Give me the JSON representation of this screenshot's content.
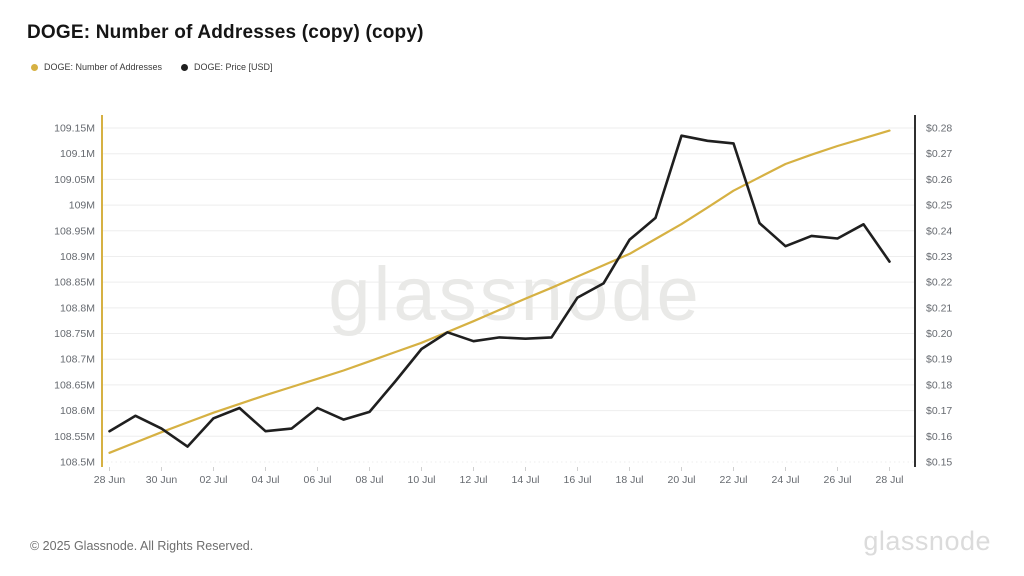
{
  "header": {
    "title": "DOGE: Number of Addresses (copy) (copy)"
  },
  "legend": {
    "items": [
      {
        "label": "DOGE: Number of Addresses",
        "color": "#d6b143"
      },
      {
        "label": "DOGE: Price [USD]",
        "color": "#1f1f1f"
      }
    ]
  },
  "watermark": "glassnode",
  "footer": {
    "copyright": "© 2025 Glassnode. All Rights Reserved.",
    "logo_text": "glassnode"
  },
  "chart_data": {
    "type": "line",
    "title": "DOGE: Number of Addresses (copy) (copy)",
    "grid": true,
    "legend_position": "top-left",
    "x": [
      "28 Jun",
      "29 Jun",
      "30 Jun",
      "01 Jul",
      "02 Jul",
      "03 Jul",
      "04 Jul",
      "05 Jul",
      "06 Jul",
      "07 Jul",
      "08 Jul",
      "09 Jul",
      "10 Jul",
      "11 Jul",
      "12 Jul",
      "13 Jul",
      "14 Jul",
      "15 Jul",
      "16 Jul",
      "17 Jul",
      "18 Jul",
      "19 Jul",
      "20 Jul",
      "21 Jul",
      "22 Jul",
      "23 Jul",
      "24 Jul",
      "25 Jul",
      "26 Jul",
      "27 Jul",
      "28 Jul"
    ],
    "x_tick_labels": [
      "28 Jun",
      "30 Jun",
      "02 Jul",
      "04 Jul",
      "06 Jul",
      "08 Jul",
      "10 Jul",
      "12 Jul",
      "14 Jul",
      "16 Jul",
      "18 Jul",
      "20 Jul",
      "22 Jul",
      "24 Jul",
      "26 Jul",
      "28 Jul"
    ],
    "left_axis": {
      "label": "DOGE: Number of Addresses",
      "min": 108.5,
      "max": 109.15,
      "unit": "M",
      "tick_labels_top_to_bottom": [
        "109.15M",
        "109.1M",
        "109.05M",
        "109M",
        "108.95M",
        "108.9M",
        "108.85M",
        "108.8M",
        "108.75M",
        "108.7M",
        "108.65M",
        "108.6M",
        "108.55M",
        "108.5M"
      ]
    },
    "right_axis": {
      "label": "DOGE: Price [USD]",
      "min": 0.15,
      "max": 0.28,
      "unit": "$",
      "tick_labels_top_to_bottom": [
        "$0.28",
        "$0.27",
        "$0.26",
        "$0.25",
        "$0.24",
        "$0.23",
        "$0.22",
        "$0.21",
        "$0.20",
        "$0.19",
        "$0.18",
        "$0.17",
        "$0.16",
        "$0.15"
      ]
    },
    "series": [
      {
        "name": "DOGE: Number of Addresses",
        "axis": "left",
        "color": "#d6b143",
        "unit": "M addresses",
        "values": [
          108.518,
          108.538,
          108.558,
          108.577,
          108.596,
          108.613,
          108.63,
          108.646,
          108.662,
          108.678,
          108.696,
          108.714,
          108.732,
          108.753,
          108.774,
          108.796,
          108.818,
          108.839,
          108.861,
          108.883,
          108.905,
          108.934,
          108.963,
          108.995,
          109.028,
          109.054,
          109.08,
          109.098,
          109.115,
          109.13,
          109.145
        ]
      },
      {
        "name": "DOGE: Price [USD]",
        "axis": "right",
        "color": "#1f1f1f",
        "unit": "USD",
        "values": [
          0.162,
          0.168,
          0.163,
          0.156,
          0.167,
          0.171,
          0.162,
          0.163,
          0.171,
          0.1665,
          0.1695,
          0.1815,
          0.194,
          0.2005,
          0.197,
          0.1985,
          0.198,
          0.1985,
          0.214,
          0.2195,
          0.2365,
          0.245,
          0.277,
          0.275,
          0.274,
          0.243,
          0.234,
          0.238,
          0.237,
          0.2425,
          0.228
        ]
      }
    ]
  }
}
